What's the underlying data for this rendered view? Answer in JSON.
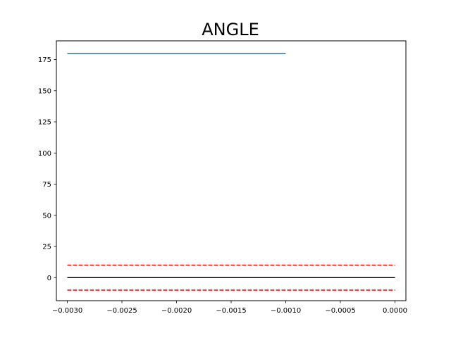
{
  "chart_data": {
    "type": "line",
    "title": "ANGLE",
    "xlabel": "",
    "ylabel": "",
    "xlim": [
      -0.0031,
      0.0001
    ],
    "ylim": [
      -18.5,
      190
    ],
    "x_ticks": [
      "−0.0030",
      "−0.0025",
      "−0.0020",
      "−0.0015",
      "−0.0010",
      "−0.0005",
      "0.0000"
    ],
    "x_tick_values": [
      -0.003,
      -0.0025,
      -0.002,
      -0.0015,
      -0.001,
      -0.0005,
      0.0
    ],
    "y_ticks": [
      "0",
      "25",
      "50",
      "75",
      "100",
      "125",
      "150",
      "175"
    ],
    "y_tick_values": [
      0,
      25,
      50,
      75,
      100,
      125,
      150,
      175
    ],
    "grid": false,
    "series": [
      {
        "x": [
          -0.003,
          -0.001
        ],
        "y": [
          180,
          180
        ],
        "color": "#1f77b4",
        "style": "solid"
      },
      {
        "x": [
          -0.003,
          0.0
        ],
        "y": [
          0,
          0
        ],
        "color": "#000000",
        "style": "solid"
      },
      {
        "x": [
          -0.003,
          0.0
        ],
        "y": [
          10,
          10
        ],
        "color": "#ff0000",
        "style": "dashed"
      },
      {
        "x": [
          -0.003,
          0.0
        ],
        "y": [
          -10,
          -10
        ],
        "color": "#ff0000",
        "style": "dashed"
      }
    ]
  }
}
